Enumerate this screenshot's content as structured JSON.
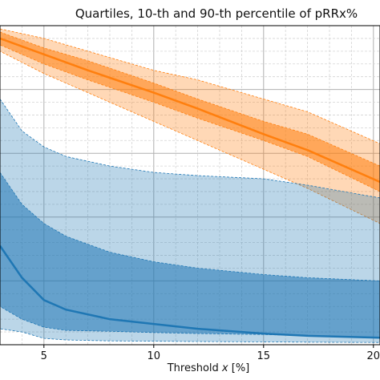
{
  "chart_data": {
    "type": "area",
    "title": "Quartiles, 10-th and 90-th percentile of pRRx%",
    "xlabel_pre": "Threshold ",
    "xlabel_var": "x",
    "xlabel_post": " [%]",
    "xlim": [
      3,
      20.3
    ],
    "ylim": [
      0,
      100
    ],
    "x_ticks": [
      "5",
      "10",
      "15",
      "20"
    ],
    "x_tick_values": [
      5,
      10,
      15,
      20
    ],
    "x_minor_step": 1,
    "y_grid_step": 4,
    "grid": true,
    "series": [
      {
        "color": "#ff7f0e",
        "x": [
          3,
          5,
          7,
          10,
          12,
          15,
          17,
          20.3
        ],
        "p10": [
          92,
          85,
          79,
          70,
          64,
          55,
          49,
          38
        ],
        "q1": [
          94,
          88,
          83,
          76,
          71,
          64,
          59,
          48
        ],
        "median": [
          96,
          91,
          86,
          79,
          74,
          66,
          61,
          51
        ],
        "q3": [
          98,
          93,
          89,
          82,
          77,
          70,
          66,
          56
        ],
        "p90": [
          99,
          96,
          92,
          86,
          83,
          77,
          73,
          63
        ]
      },
      {
        "color": "#1f77b4",
        "x": [
          3,
          4,
          5,
          6,
          8,
          10,
          12,
          15,
          17,
          20.3
        ],
        "p10": [
          5,
          4,
          2,
          1.5,
          1.2,
          1.1,
          1,
          0.9,
          0.8,
          0.7
        ],
        "q1": [
          12,
          8,
          5.5,
          4.5,
          4.2,
          3.8,
          3.5,
          3.2,
          2.8,
          2.2
        ],
        "median": [
          31,
          21,
          14,
          11,
          8,
          6.5,
          5,
          3.5,
          2.8,
          2.2
        ],
        "q3": [
          54,
          44,
          38,
          34,
          29,
          26,
          24,
          22,
          21,
          20
        ],
        "p90": [
          77,
          67,
          62,
          59,
          56,
          54,
          53,
          52,
          50,
          46
        ]
      }
    ]
  }
}
